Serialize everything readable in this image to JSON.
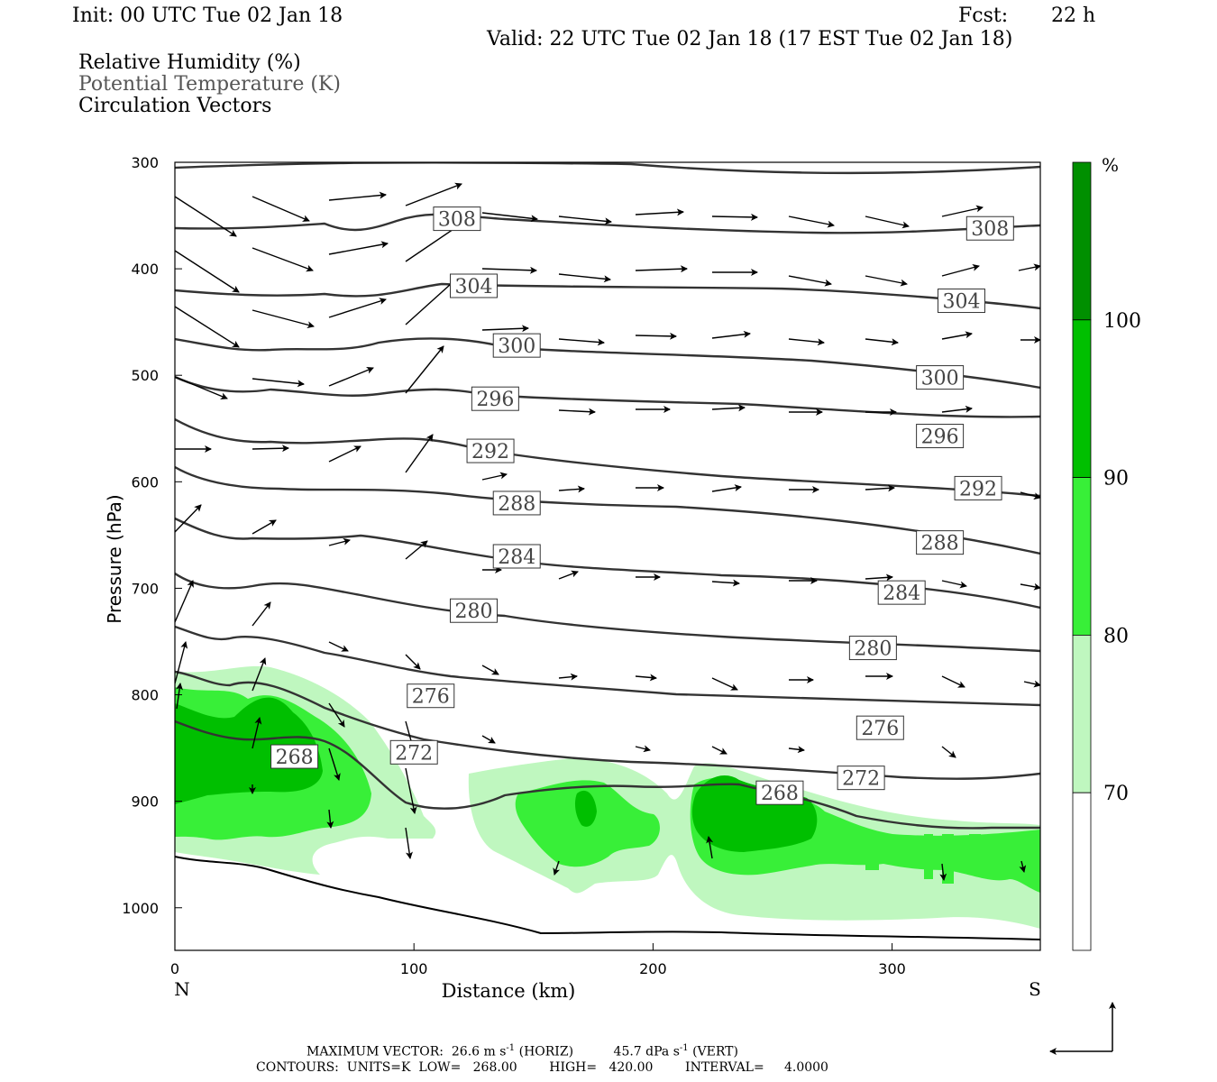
{
  "header": {
    "init": "Init: 00 UTC Tue 02 Jan 18",
    "fcst_label": "Fcst:",
    "fcst_value": "22 h",
    "valid": "Valid: 22 UTC Tue 02 Jan 18 (17 EST Tue 02 Jan 18)"
  },
  "fields": [
    "Relative Humidity (%)",
    "Potential Temperature (K)",
    "Circulation Vectors"
  ],
  "footer": {
    "line1_a": "MAXIMUM VECTOR:  26.6 m s",
    "line1_b": " (HORIZ)          45.7 dPa s",
    "line1_c": " (VERT)",
    "sup": "-1",
    "line2": "CONTOURS:  UNITS=K  LOW=   268.00        HIGH=   420.00        INTERVAL=     4.0000"
  },
  "chart_data": {
    "type": "contour",
    "xlabel": "Distance (km)",
    "ylabel": "Pressure (hPa)",
    "xlim": [
      0,
      362
    ],
    "ylim": [
      1040,
      300
    ],
    "x_ticks": [
      0,
      100,
      200,
      300
    ],
    "y_ticks": [
      300,
      400,
      500,
      600,
      700,
      800,
      900,
      1000
    ],
    "x_end_labels": {
      "left": "N",
      "right": "S"
    },
    "colorbar": {
      "unit": "%",
      "levels": [
        70,
        80,
        90,
        100
      ],
      "colors": [
        "#ffffff",
        "#bff7bf",
        "#38ef38",
        "#00bf00",
        "#008f00"
      ]
    },
    "isentropes_K": [
      308,
      304,
      300,
      296,
      292,
      288,
      284,
      280,
      276,
      272,
      268
    ],
    "isentrope_labels": [
      {
        "value": "308",
        "x": 118,
        "p": 353
      },
      {
        "value": "308",
        "x": 341,
        "p": 362
      },
      {
        "value": "304",
        "x": 125,
        "p": 416
      },
      {
        "value": "304",
        "x": 329,
        "p": 430
      },
      {
        "value": "300",
        "x": 143,
        "p": 472
      },
      {
        "value": "300",
        "x": 320,
        "p": 502
      },
      {
        "value": "296",
        "x": 134,
        "p": 522
      },
      {
        "value": "296",
        "x": 320,
        "p": 557
      },
      {
        "value": "292",
        "x": 132,
        "p": 571
      },
      {
        "value": "292",
        "x": 336,
        "p": 606
      },
      {
        "value": "288",
        "x": 143,
        "p": 620
      },
      {
        "value": "288",
        "x": 320,
        "p": 657
      },
      {
        "value": "284",
        "x": 143,
        "p": 670
      },
      {
        "value": "284",
        "x": 304,
        "p": 704
      },
      {
        "value": "280",
        "x": 125,
        "p": 721
      },
      {
        "value": "280",
        "x": 292,
        "p": 756
      },
      {
        "value": "276",
        "x": 107,
        "p": 801
      },
      {
        "value": "276",
        "x": 295,
        "p": 831
      },
      {
        "value": "272",
        "x": 100,
        "p": 854
      },
      {
        "value": "272",
        "x": 287,
        "p": 878
      },
      {
        "value": "268",
        "x": 50,
        "p": 858
      },
      {
        "value": "268",
        "x": 253,
        "p": 892
      }
    ],
    "max_vector": {
      "horiz": "26.6 m s-1",
      "vert": "45.7 dPa s-1"
    },
    "contours_info": {
      "units": "K",
      "low": 268.0,
      "high": 420.0,
      "interval": 4.0
    }
  }
}
